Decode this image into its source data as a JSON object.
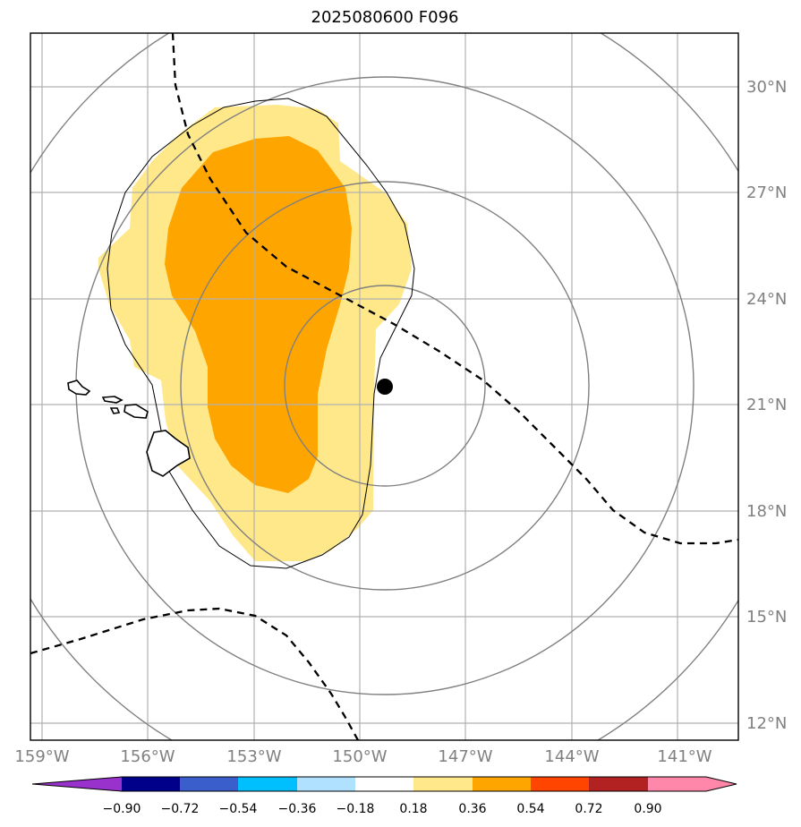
{
  "title": "2025080600 F096",
  "map": {
    "lon_labels": [
      "159°W",
      "156°W",
      "153°W",
      "150°W",
      "147°W",
      "144°W",
      "141°W"
    ],
    "lat_labels": [
      "30°N",
      "27°N",
      "24°N",
      "21°N",
      "18°N",
      "15°N",
      "12°N"
    ],
    "lon_range_deg_west": [
      159.3,
      139.2
    ],
    "lat_range_deg_north": [
      11.5,
      31.6
    ],
    "gridlines": true,
    "storm_center": {
      "lon": "149.3°W",
      "lat": "21.5°N"
    },
    "features": [
      "Hawaiian Islands coastline",
      "concentric range rings",
      "dashed boundary lines",
      "probability contour"
    ]
  },
  "colorbar": {
    "tick_labels": [
      "−0.90",
      "−0.72",
      "−0.54",
      "−0.36",
      "−0.18",
      "0.18",
      "0.36",
      "0.54",
      "0.72",
      "0.90"
    ],
    "colors": [
      "#9932cc",
      "#00008b",
      "#3a5fcd",
      "#00bfff",
      "#b0e2ff",
      "#ffffff",
      "#ffe88a",
      "#ffa500",
      "#ff4500",
      "#b22222",
      "#ff88aa"
    ],
    "extend": "both"
  },
  "shaded_field": {
    "levels_shown": [
      {
        "range": "0.18–0.36",
        "color": "#ffe88a"
      },
      {
        "range": "0.36–0.54",
        "color": "#ffa500"
      }
    ]
  }
}
